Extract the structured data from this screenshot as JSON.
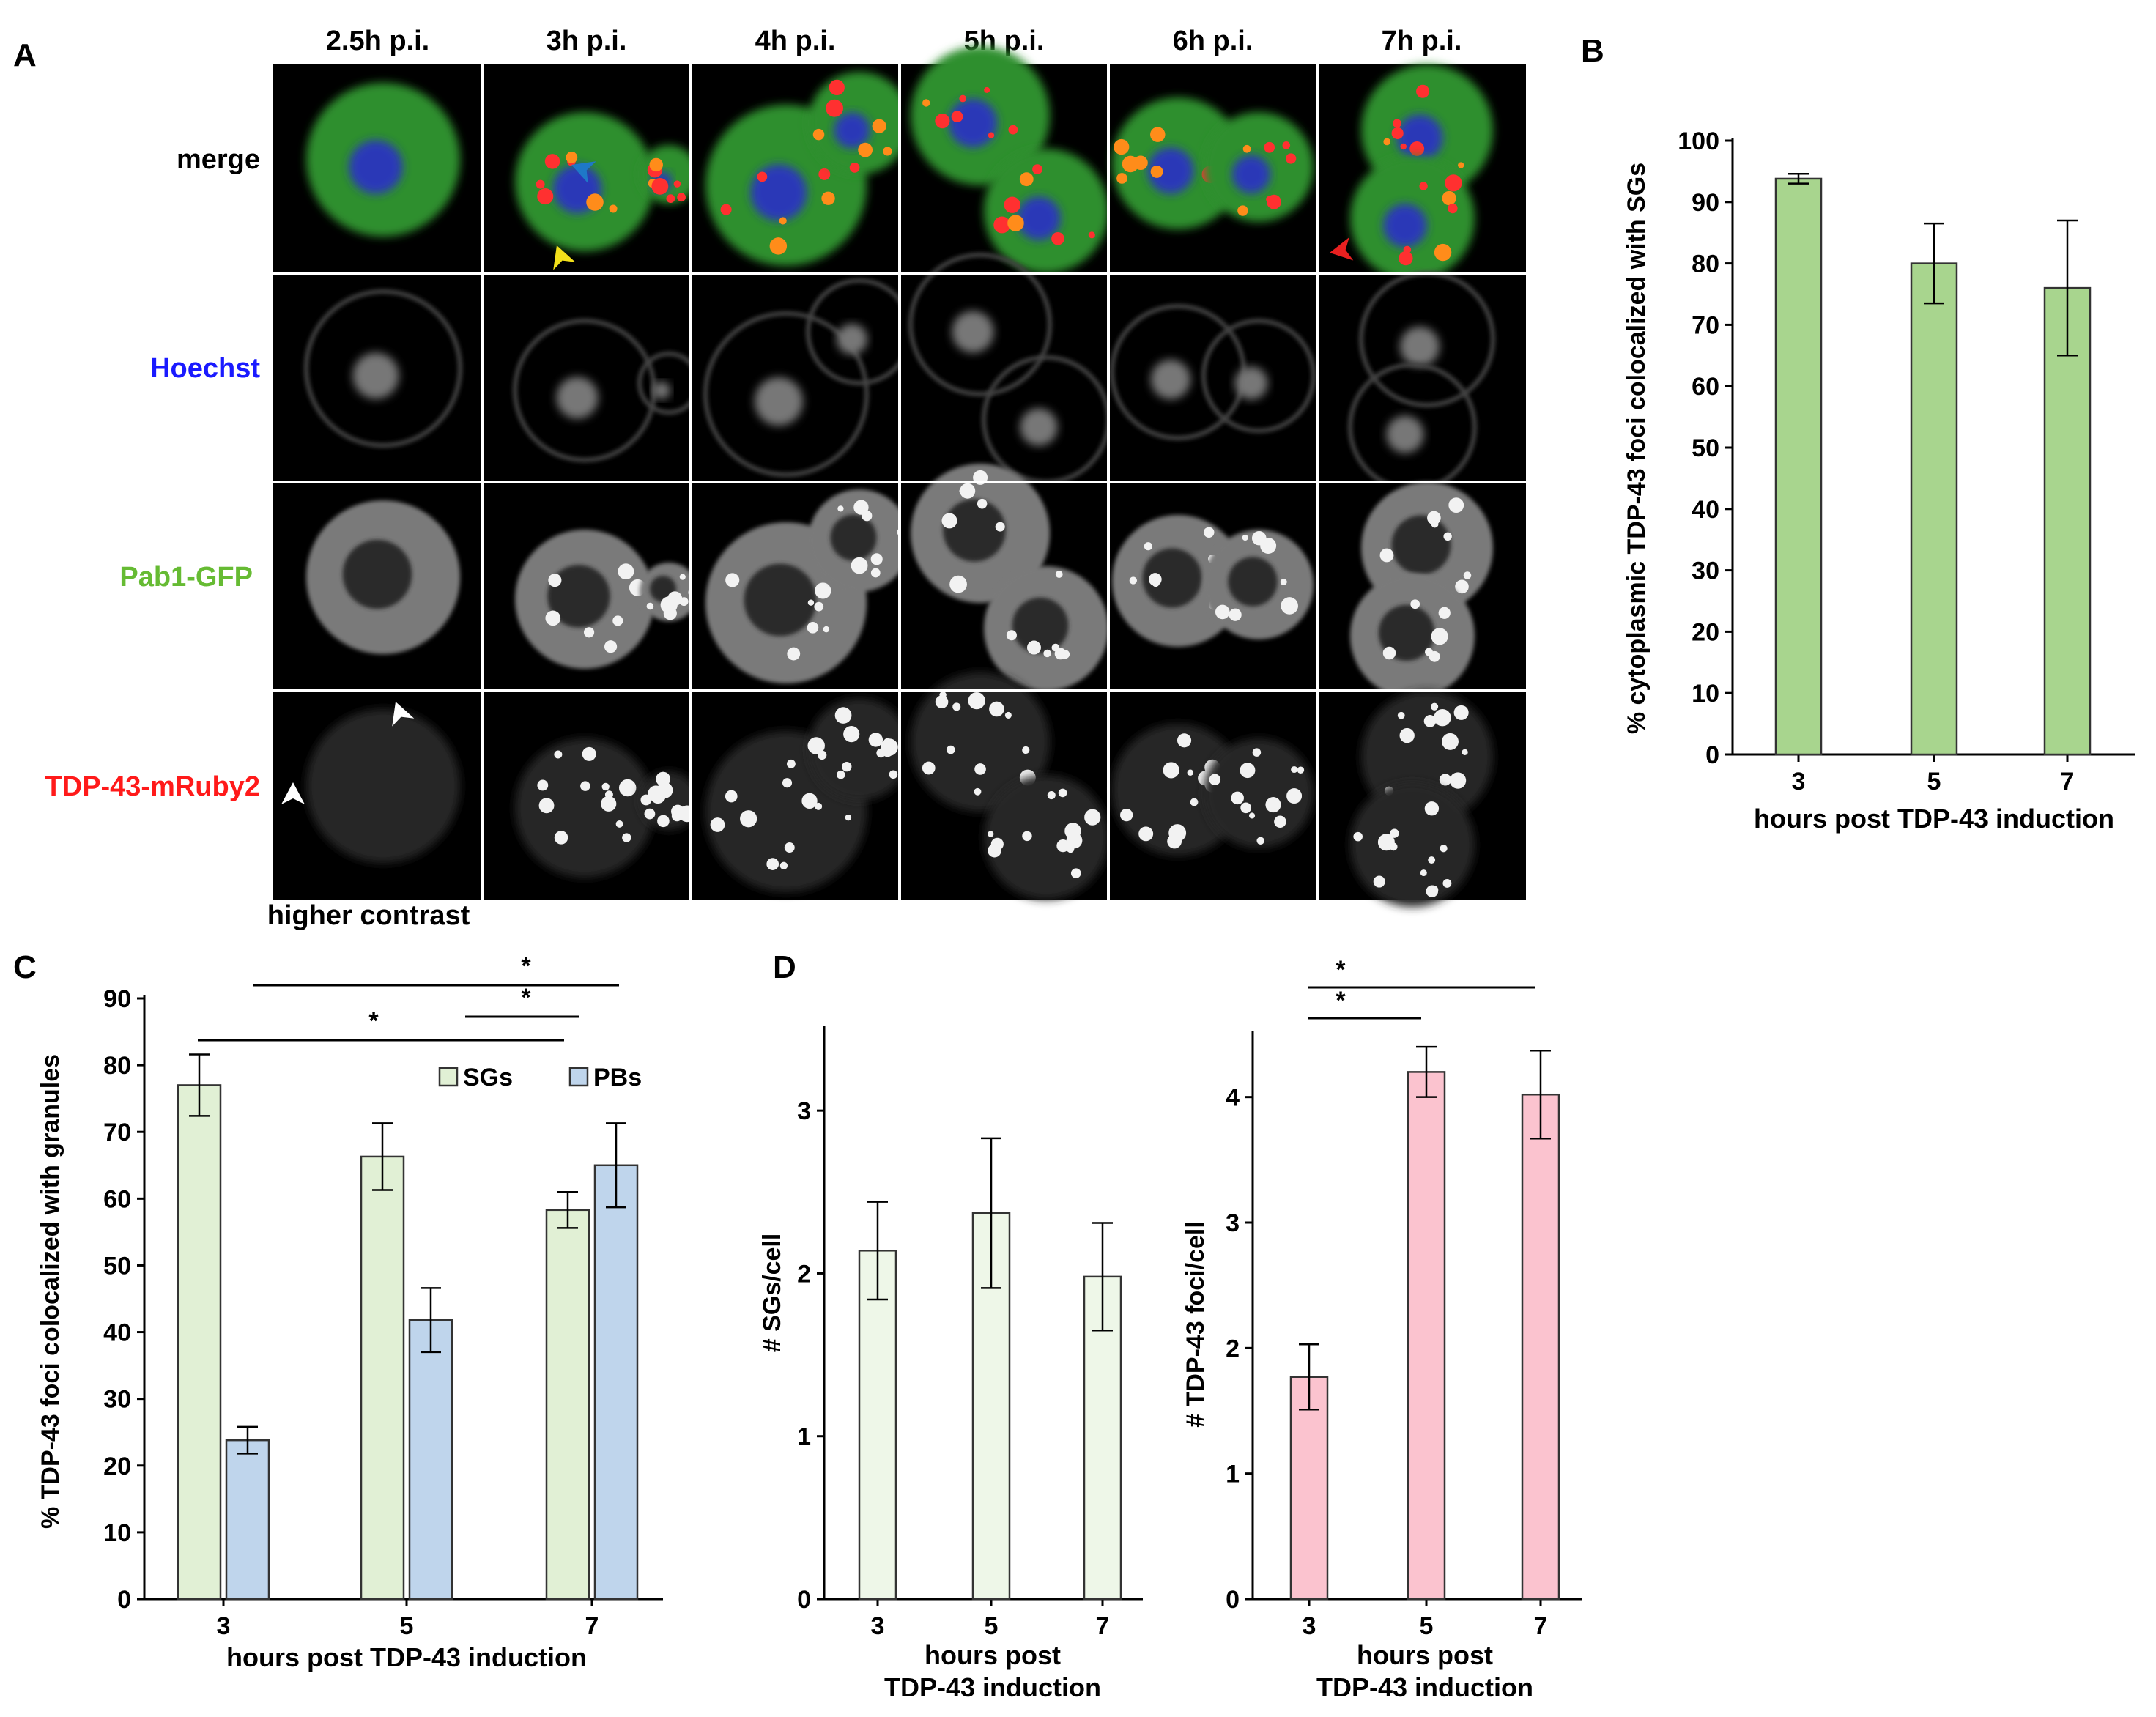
{
  "panel_a": {
    "letter": "A",
    "columns": [
      "2.5h p.i.",
      "3h p.i.",
      "4h p.i.",
      "5h p.i.",
      "6h p.i.",
      "7h p.i."
    ],
    "rows": [
      {
        "label": "merge",
        "color": "#000000"
      },
      {
        "label": "Hoechst",
        "color": "#1a1aff"
      },
      {
        "label": "Pab1-GFP",
        "color": "#66bb33"
      },
      {
        "label": "TDP-43-mRuby2",
        "color": "#ff1a1a"
      }
    ],
    "footnote": "higher contrast"
  },
  "letters": {
    "b": "B",
    "c": "C",
    "d": "D"
  },
  "chart_data": [
    {
      "id": "B",
      "type": "bar",
      "categories": [
        "3",
        "5",
        "7"
      ],
      "series": [
        {
          "name": "",
          "values": [
            93.8,
            80,
            76
          ],
          "errors": [
            0.8,
            6.5,
            11
          ],
          "color": "#a8d58e"
        }
      ],
      "xlabel": "hours post TDP-43 induction",
      "ylabel": "% cytoplasmic TDP-43 foci colocalized with SGs",
      "ylim": [
        0,
        100
      ],
      "yticks": [
        "0",
        "10",
        "20",
        "30",
        "40",
        "50",
        "60",
        "70",
        "80",
        "90",
        "100"
      ]
    },
    {
      "id": "C",
      "type": "bar",
      "categories": [
        "3",
        "5",
        "7"
      ],
      "series": [
        {
          "name": "SGs",
          "values": [
            77,
            66.3,
            58.3
          ],
          "errors": [
            4.6,
            5,
            2.7
          ],
          "color": "#e1f0d5"
        },
        {
          "name": "PBs",
          "values": [
            23.8,
            41.8,
            65
          ],
          "errors": [
            2,
            4.8,
            6.3
          ],
          "color": "#bfd5ec"
        }
      ],
      "xlabel": "hours post TDP-43 induction",
      "ylabel": "% TDP-43 foci colocalized with granules",
      "ylim": [
        0,
        90
      ],
      "yticks": [
        "0",
        "10",
        "20",
        "30",
        "40",
        "50",
        "60",
        "70",
        "80",
        "90"
      ],
      "significance": [
        "*",
        "*",
        "*"
      ],
      "legend_position": "top-right"
    },
    {
      "id": "D1",
      "type": "bar",
      "categories": [
        "3",
        "5",
        "7"
      ],
      "series": [
        {
          "name": "",
          "values": [
            2.14,
            2.37,
            1.98
          ],
          "errors": [
            0.3,
            0.46,
            0.33
          ],
          "color": "#eef7e8"
        }
      ],
      "xlabel": "hours post TDP-43 induction",
      "xlabel_lines": [
        "hours post",
        "TDP-43 induction"
      ],
      "ylabel": "# SGs/cell",
      "ylim": [
        0,
        3.5
      ],
      "yticks": [
        "0",
        "1",
        "2",
        "3"
      ]
    },
    {
      "id": "D2",
      "type": "bar",
      "categories": [
        "3",
        "5",
        "7"
      ],
      "series": [
        {
          "name": "",
          "values": [
            1.77,
            4.2,
            4.02
          ],
          "errors": [
            0.26,
            0.2,
            0.35
          ],
          "color": "#fbc3cf"
        }
      ],
      "xlabel": "hours post TDP-43 induction",
      "xlabel_lines": [
        "hours post",
        "TDP-43 induction"
      ],
      "ylabel": "# TDP-43 foci/cell",
      "ylim": [
        0,
        4.5
      ],
      "yticks": [
        "0",
        "1",
        "2",
        "3",
        "4"
      ],
      "significance": [
        "*",
        "*"
      ]
    }
  ]
}
